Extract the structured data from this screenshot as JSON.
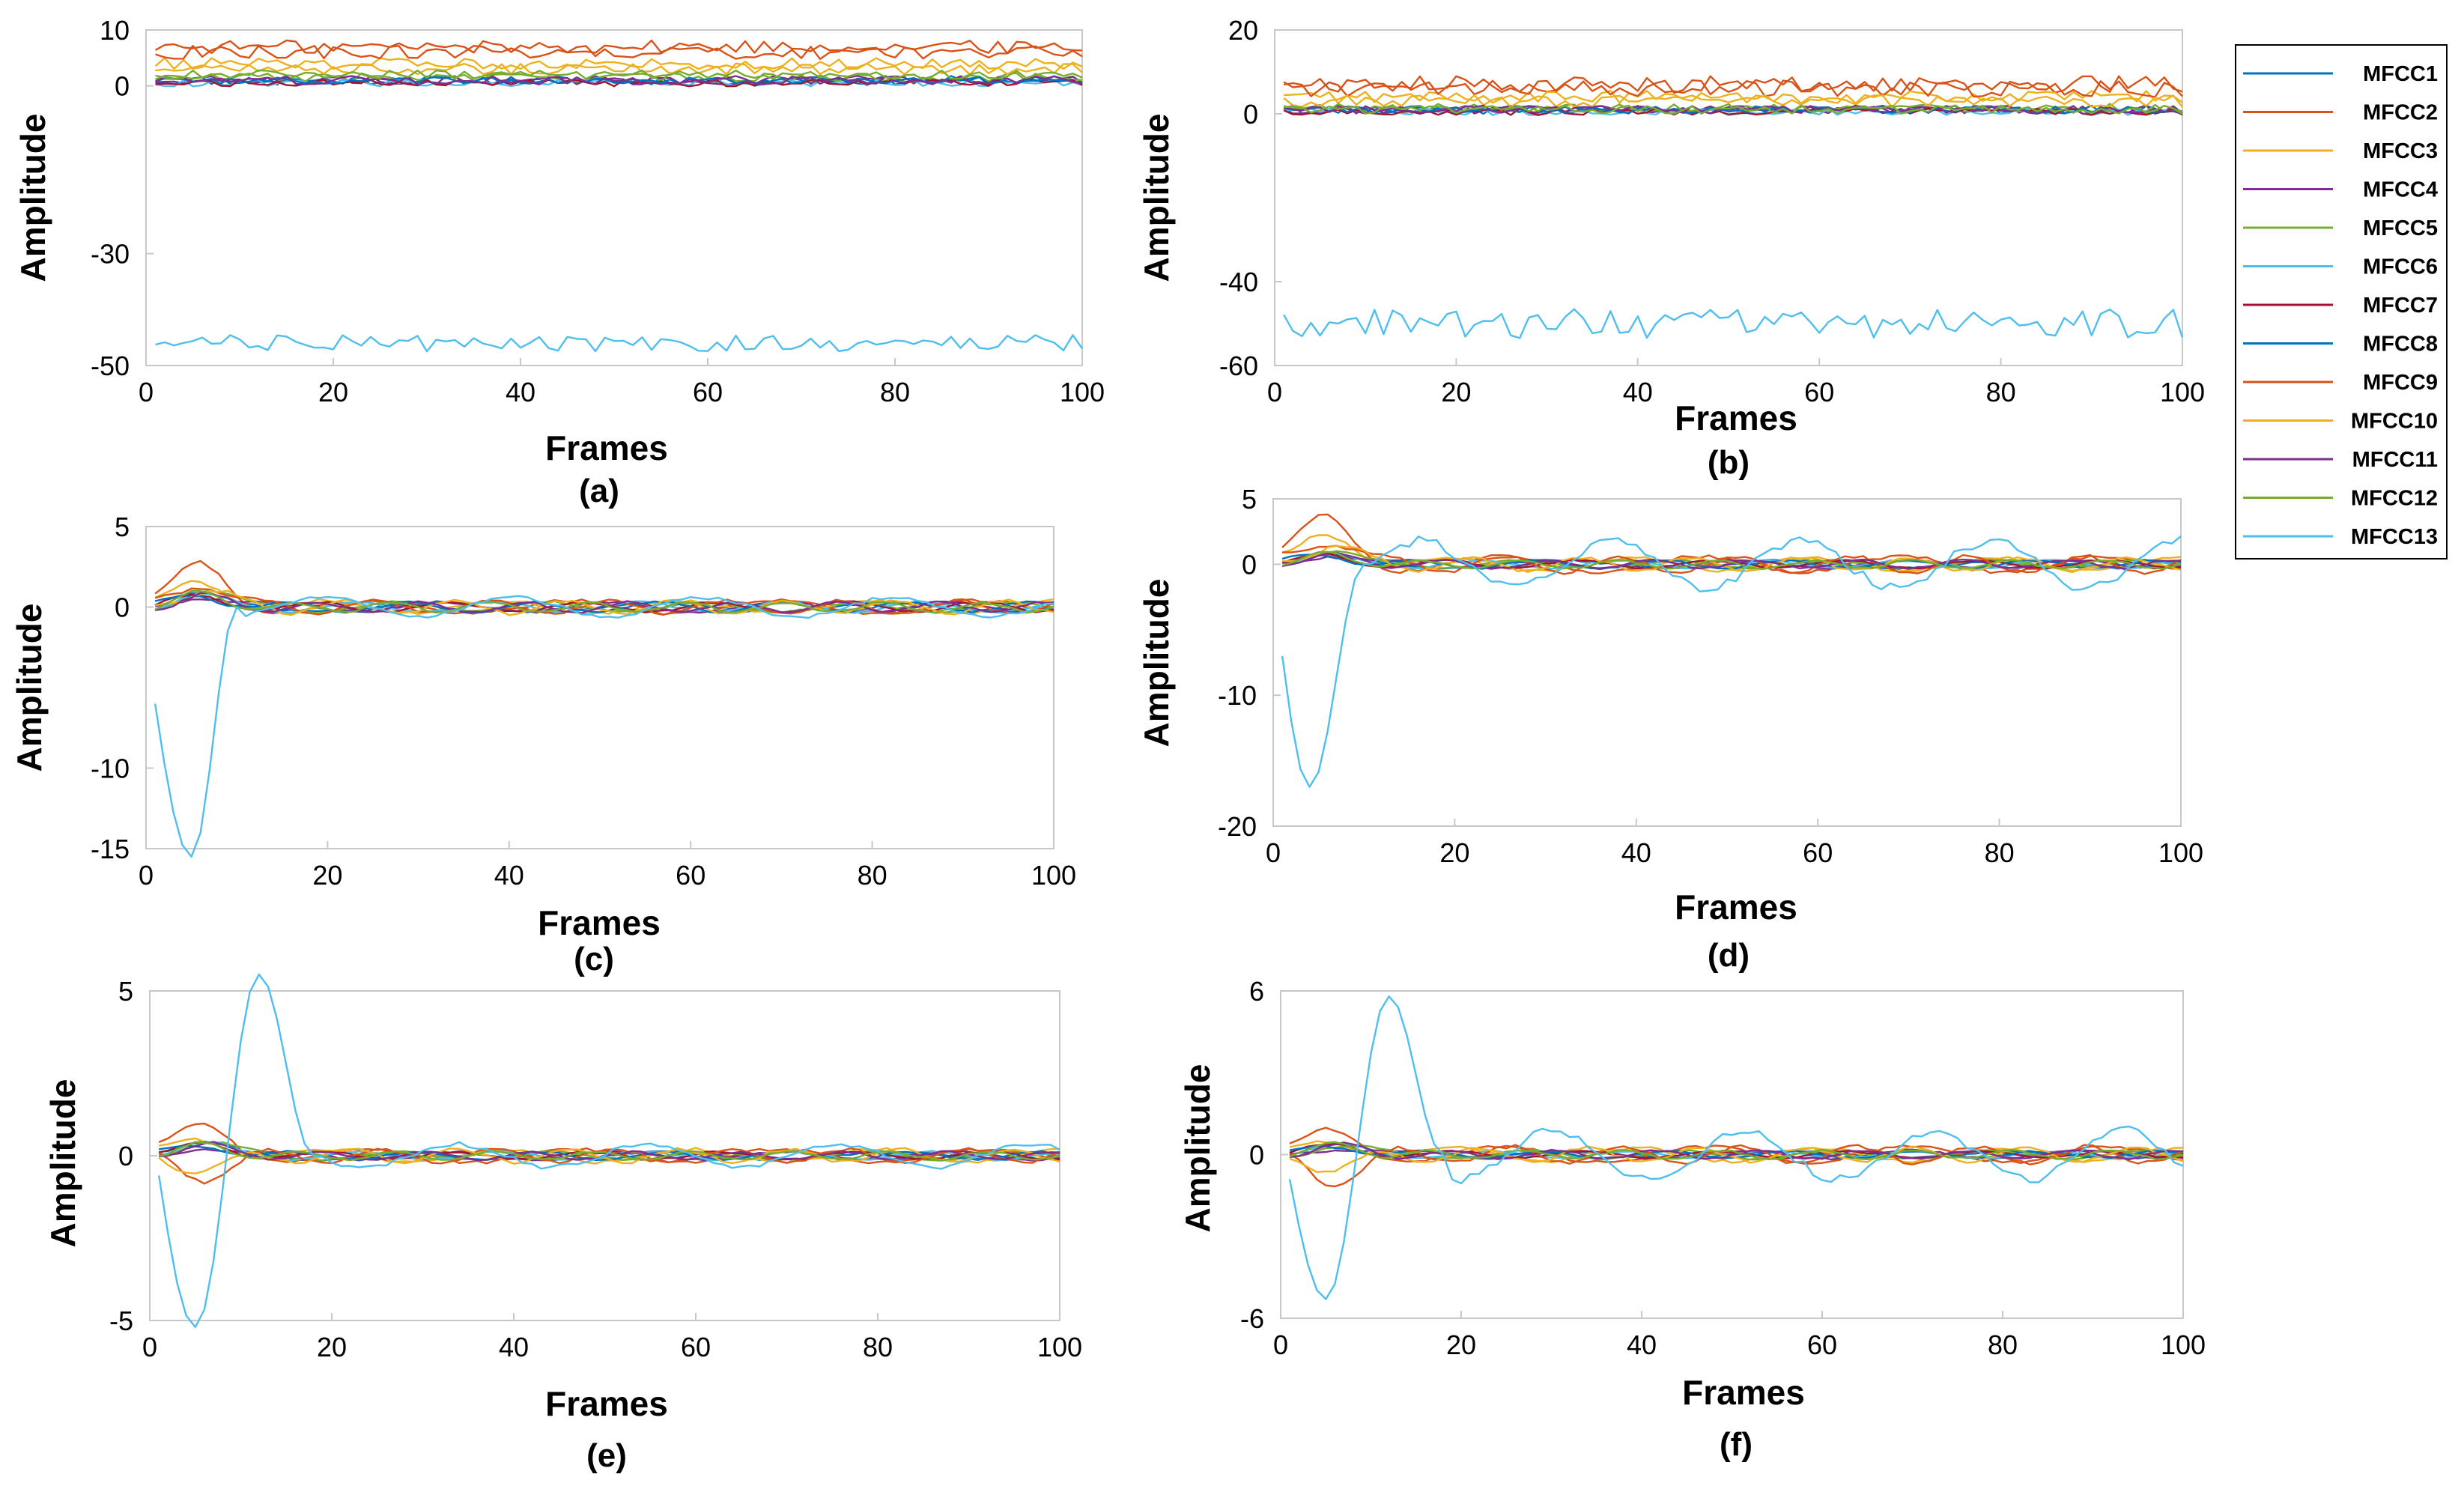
{
  "figure": {
    "colors": [
      "#0072BD",
      "#D95319",
      "#EDB120",
      "#7E2F8E",
      "#77AC30",
      "#4DBEEE",
      "#A2142F",
      "#0072BD",
      "#D95319",
      "#EDB120",
      "#7E2F8E",
      "#77AC30",
      "#4DBEEE"
    ]
  },
  "legend": {
    "entries": [
      "MFCC1",
      "MFCC2",
      "MFCC3",
      "MFCC4",
      "MFCC5",
      "MFCC6",
      "MFCC7",
      "MFCC8",
      "MFCC9",
      "MFCC10",
      "MFCC11",
      "MFCC12",
      "MFCC13"
    ]
  },
  "chart_data": [
    {
      "type": "line",
      "caption": "(a)",
      "xlabel": "Frames",
      "ylabel": "Amplitude",
      "xlim": [
        0,
        100
      ],
      "xticks": [
        "0",
        "20",
        "40",
        "60",
        "80",
        "100"
      ],
      "ylim": [
        -50,
        10
      ],
      "yticks": [
        10,
        0,
        -30,
        -50
      ],
      "ytick_labels": [
        "10",
        "0",
        "-30",
        "-50"
      ],
      "frames": [
        1,
        100
      ],
      "series_means": [
        1,
        7,
        4,
        1,
        1.5,
        0.5,
        0.5,
        1,
        6,
        3,
        1,
        2,
        -46
      ],
      "series_noise": [
        0.8,
        1.2,
        1.0,
        0.8,
        0.8,
        0.6,
        0.6,
        0.6,
        1.2,
        1.0,
        0.8,
        0.8,
        1.5
      ]
    },
    {
      "type": "line",
      "caption": "(b)",
      "xlabel": "Frames",
      "ylabel": "Amplitude",
      "xlim": [
        0,
        100
      ],
      "xticks": [
        "0",
        "20",
        "40",
        "60",
        "80",
        "100"
      ],
      "ylim": [
        -60,
        20
      ],
      "yticks": [
        20,
        0,
        -40,
        -60
      ],
      "ytick_labels": [
        "20",
        "0",
        "-40",
        "-60"
      ],
      "frames": [
        1,
        100
      ],
      "series_means": [
        1,
        7,
        4,
        1,
        1.5,
        0.5,
        0.5,
        1,
        6,
        3,
        1,
        1,
        -50
      ],
      "series_noise": [
        1.0,
        2.0,
        1.5,
        1.0,
        1.0,
        0.8,
        0.8,
        0.8,
        2.0,
        1.5,
        1.0,
        1.0,
        3.5
      ]
    },
    {
      "type": "line",
      "caption": "(c)",
      "xlabel": "Frames",
      "ylabel": "Amplitude",
      "xlim": [
        0,
        100
      ],
      "xticks": [
        "0",
        "20",
        "40",
        "60",
        "80",
        "100"
      ],
      "ylim": [
        -15,
        5
      ],
      "yticks": [
        5,
        0,
        -10,
        -15
      ],
      "ytick_labels": [
        "5",
        "0",
        "-10",
        "-15"
      ],
      "frames": [
        1,
        100
      ],
      "mfcc13_transient": {
        "start": -6,
        "min": -15.5,
        "min_frame": 5,
        "recover_frame": 10
      },
      "series_bumps": [
        0.6,
        2.6,
        1.8,
        0.8,
        0.9,
        0.5,
        0.5,
        0.7,
        1.5,
        1.0,
        0.6,
        0.7
      ],
      "series_noise": [
        0.3,
        0.4,
        0.4,
        0.3,
        0.3,
        0.3,
        0.3,
        0.3,
        0.4,
        0.4,
        0.3,
        0.3,
        0.6
      ]
    },
    {
      "type": "line",
      "caption": "(d)",
      "xlabel": "Frames",
      "ylabel": "Amplitude",
      "xlim": [
        0,
        100
      ],
      "xticks": [
        "0",
        "20",
        "40",
        "60",
        "80",
        "100"
      ],
      "ylim": [
        -20,
        5
      ],
      "yticks": [
        5,
        0,
        -10,
        -20
      ],
      "ytick_labels": [
        "5",
        "0",
        "-10",
        "-20"
      ],
      "frames": [
        1,
        100
      ],
      "mfcc13_transient": {
        "start": -7,
        "min": -17,
        "min_frame": 4,
        "recover_frame": 10
      },
      "series_bumps": [
        0.5,
        3.5,
        2.6,
        0.8,
        0.9,
        0.5,
        0.5,
        0.7,
        2.0,
        1.4,
        0.6,
        0.7
      ],
      "series_noise": [
        0.3,
        0.6,
        0.5,
        0.3,
        0.3,
        0.3,
        0.3,
        0.3,
        0.6,
        0.5,
        0.3,
        0.3,
        1.8
      ]
    },
    {
      "type": "line",
      "caption": "(e)",
      "xlabel": "Frames",
      "ylabel": "Amplitude",
      "xlim": [
        0,
        100
      ],
      "xticks": [
        "0",
        "20",
        "40",
        "60",
        "80",
        "100"
      ],
      "ylim": [
        -5,
        5
      ],
      "yticks": [
        5,
        0,
        -5
      ],
      "ytick_labels": [
        "5",
        "0",
        "-5"
      ],
      "frames": [
        1,
        100
      ],
      "mfcc13_transient": {
        "start": -0.6,
        "min": -5.2,
        "min_frame": 5,
        "max": 5.5,
        "max_frame": 12,
        "recover_frame": 18
      },
      "series_bumps": [
        0.3,
        0.9,
        0.6,
        0.3,
        0.4,
        0.3,
        0.3,
        0.3,
        -0.6,
        -0.4,
        0.3,
        0.3
      ],
      "series_noise": [
        0.12,
        0.2,
        0.2,
        0.12,
        0.12,
        0.12,
        0.12,
        0.12,
        0.2,
        0.2,
        0.12,
        0.12,
        0.35
      ]
    },
    {
      "type": "line",
      "caption": "(f)",
      "xlabel": "Frames",
      "ylabel": "Amplitude",
      "xlim": [
        0,
        100
      ],
      "xticks": [
        "0",
        "20",
        "40",
        "60",
        "80",
        "100"
      ],
      "ylim": [
        -6,
        6
      ],
      "yticks": [
        6,
        0,
        -6
      ],
      "ytick_labels": [
        "6",
        "0",
        "-6"
      ],
      "frames": [
        1,
        100
      ],
      "mfcc13_transient": {
        "start": -0.9,
        "min": -5.3,
        "min_frame": 5,
        "max": 5.8,
        "max_frame": 12,
        "recover_frame": 18
      },
      "series_bumps": [
        0.3,
        0.8,
        0.6,
        0.3,
        0.3,
        0.3,
        0.3,
        0.3,
        -0.9,
        -0.5,
        0.3,
        0.3
      ],
      "series_noise": [
        0.12,
        0.3,
        0.25,
        0.15,
        0.15,
        0.12,
        0.12,
        0.12,
        0.3,
        0.25,
        0.15,
        0.15,
        0.9
      ]
    }
  ]
}
